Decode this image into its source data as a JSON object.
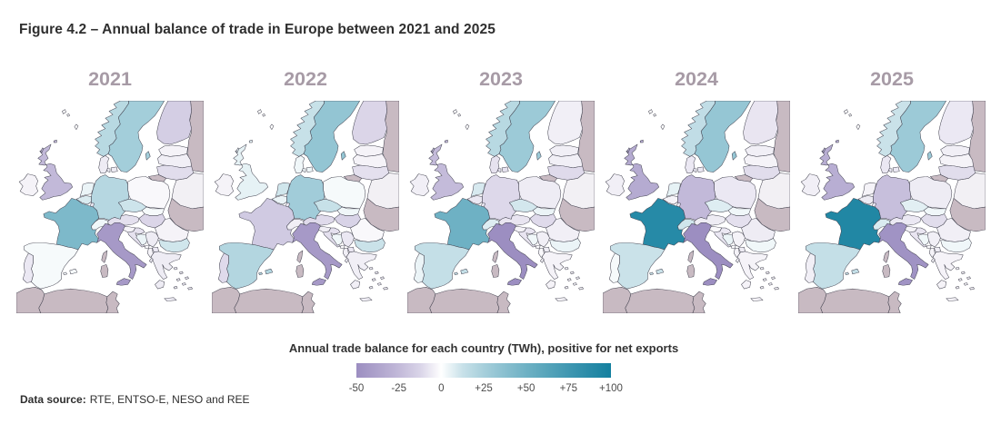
{
  "title": "Figure 4.2 – Annual balance of trade in Europe between 2021 and 2025",
  "years": [
    "2021",
    "2022",
    "2023",
    "2024",
    "2025"
  ],
  "legend": {
    "caption": "Annual trade balance for each country (TWh), positive for net exports",
    "ticks": [
      "-50",
      "-25",
      "0",
      "+25",
      "+50",
      "+75",
      "+100"
    ]
  },
  "source": {
    "label": "Data source:",
    "text": "RTE, ENTSO-E, NESO and REE"
  },
  "colors": {
    "title_text": "#2f2f2f",
    "year_label": "#a79ba6",
    "map_border": "#41414e",
    "tick_text": "#4c4c4c"
  },
  "chart_data": {
    "type": "choropleth_map_series",
    "title": "Annual balance of trade in Europe between 2021 and 2025",
    "subtitle": "Annual trade balance for each country (TWh), positive for net exports",
    "unit": "TWh",
    "years": [
      2021,
      2022,
      2023,
      2024,
      2025
    ],
    "colorscale": {
      "min": -50,
      "max": 100,
      "tick_values": [
        -50,
        -25,
        0,
        25,
        50,
        75,
        100
      ],
      "negative_color": "#9c8ec1",
      "midpoint_color": "#ffffff",
      "positive_color": "#14809f",
      "no_data_color": "#c8bac2",
      "no_data_light_color": "#f2f0f4",
      "island_outline_color": "#ffffff"
    },
    "countries": {
      "France": [
        43,
        -17,
        50,
        89,
        92
      ],
      "United Kingdom": [
        -25,
        4,
        -24,
        -33,
        -31
      ],
      "Italy": [
        -43,
        -43,
        -51,
        -50,
        -47
      ],
      "Germany": [
        19,
        27,
        -11,
        -25,
        -22
      ],
      "Spain": [
        1,
        20,
        14,
        12,
        14
      ],
      "Portugal": [
        -5,
        -10,
        3,
        1,
        -3
      ],
      "Sweden": [
        26,
        33,
        29,
        32,
        29
      ],
      "Norway": [
        18,
        13,
        18,
        15,
        12
      ],
      "Finland": [
        -15,
        -12,
        -3,
        -6,
        -5
      ],
      "Denmark": [
        -4,
        2,
        -7,
        -5,
        -5
      ],
      "Netherlands": [
        3,
        10,
        8,
        4,
        -2
      ],
      "Belgium": [
        7,
        3,
        -5,
        -2,
        -4
      ],
      "Luxembourg": [
        -5,
        -5,
        -5,
        -5,
        -5
      ],
      "Ireland": [
        -2,
        -2,
        -3,
        -3,
        -3
      ],
      "Poland": [
        -1,
        1,
        -4,
        -5,
        -4
      ],
      "Czechia": [
        11,
        13,
        9,
        6,
        5
      ],
      "Austria": [
        -8,
        -10,
        -6,
        -4,
        -5
      ],
      "Switzerland": [
        2,
        -3,
        6,
        10,
        7
      ],
      "Slovakia": [
        1,
        2,
        3,
        2,
        2
      ],
      "Hungary": [
        -12,
        -13,
        -10,
        -8,
        -9
      ],
      "Slovenia": [
        -2,
        -3,
        -2,
        -1,
        -2
      ],
      "Croatia": [
        -7,
        -8,
        -6,
        -5,
        -6
      ],
      "Bosnia and Herzegovina": [
        3,
        2,
        2,
        3,
        2
      ],
      "Serbia": [
        -4,
        -5,
        -3,
        -2,
        -3
      ],
      "Montenegro": [
        -1,
        -1,
        -1,
        -1,
        -1
      ],
      "Albania": [
        -2,
        -3,
        -1,
        -2,
        -2
      ],
      "North Macedonia": [
        -5,
        -5,
        -4,
        -4,
        -4
      ],
      "Greece": [
        -4,
        -3,
        -2,
        -2,
        -2
      ],
      "Bulgaria": [
        10,
        12,
        3,
        2,
        2
      ],
      "Romania": [
        -2,
        -1,
        -3,
        -4,
        -3
      ],
      "Estonia": [
        -2,
        -2,
        -3,
        -3,
        -3
      ],
      "Latvia": [
        -3,
        -2,
        -3,
        -2,
        -2
      ],
      "Lithuania": [
        -9,
        -8,
        -10,
        -9,
        -9
      ]
    },
    "no_data_regions": [
      "Russia",
      "Ukraine",
      "Kaliningrad",
      "Morocco",
      "Algeria",
      "Tunisia",
      "Corsica",
      "Sardinia"
    ],
    "no_data_light_regions": [
      "Belarus"
    ]
  }
}
